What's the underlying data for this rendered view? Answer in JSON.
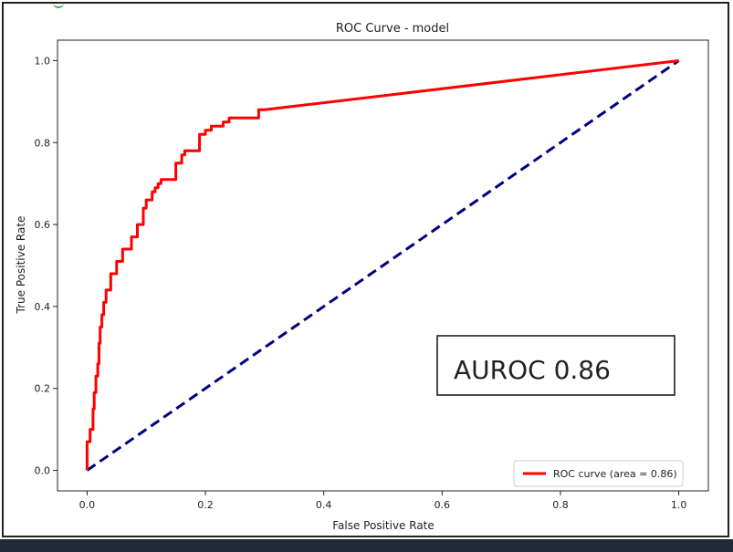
{
  "chart_data": {
    "type": "line",
    "title": "ROC Curve - model",
    "xlabel": "False Positive Rate",
    "ylabel": "True Positive Rate",
    "xlim": [
      -0.05,
      1.05
    ],
    "ylim": [
      -0.05,
      1.05
    ],
    "xticks": [
      "0.0",
      "0.2",
      "0.4",
      "0.6",
      "0.8",
      "1.0"
    ],
    "yticks": [
      "0.0",
      "0.2",
      "0.4",
      "0.6",
      "0.8",
      "1.0"
    ],
    "grid": false,
    "legend_position": "lower right",
    "annotation": "AUROC 0.86",
    "series": [
      {
        "name": "ROC curve (area = 0.86)",
        "color": "#ff0000",
        "style": "solid",
        "x": [
          0.0,
          0.0,
          0.005,
          0.005,
          0.01,
          0.01,
          0.012,
          0.012,
          0.015,
          0.015,
          0.018,
          0.018,
          0.02,
          0.02,
          0.022,
          0.022,
          0.025,
          0.025,
          0.028,
          0.028,
          0.032,
          0.032,
          0.04,
          0.04,
          0.05,
          0.05,
          0.06,
          0.06,
          0.075,
          0.075,
          0.085,
          0.085,
          0.095,
          0.095,
          0.1,
          0.1,
          0.11,
          0.11,
          0.115,
          0.115,
          0.12,
          0.12,
          0.125,
          0.125,
          0.15,
          0.15,
          0.16,
          0.16,
          0.165,
          0.165,
          0.19,
          0.19,
          0.2,
          0.2,
          0.21,
          0.21,
          0.23,
          0.23,
          0.24,
          0.24,
          0.29,
          0.29,
          0.3,
          1.0
        ],
        "y": [
          0.0,
          0.07,
          0.07,
          0.1,
          0.1,
          0.15,
          0.15,
          0.19,
          0.19,
          0.23,
          0.23,
          0.26,
          0.26,
          0.31,
          0.31,
          0.35,
          0.35,
          0.38,
          0.38,
          0.41,
          0.41,
          0.44,
          0.44,
          0.48,
          0.48,
          0.51,
          0.51,
          0.54,
          0.54,
          0.57,
          0.57,
          0.6,
          0.6,
          0.64,
          0.64,
          0.66,
          0.66,
          0.68,
          0.68,
          0.69,
          0.69,
          0.7,
          0.7,
          0.71,
          0.71,
          0.75,
          0.75,
          0.77,
          0.77,
          0.78,
          0.78,
          0.82,
          0.82,
          0.83,
          0.83,
          0.84,
          0.84,
          0.85,
          0.85,
          0.86,
          0.86,
          0.88,
          0.88,
          1.0
        ]
      },
      {
        "name": "",
        "color": "#000080",
        "style": "dashed",
        "x": [
          0,
          1
        ],
        "y": [
          0,
          1
        ]
      }
    ]
  }
}
